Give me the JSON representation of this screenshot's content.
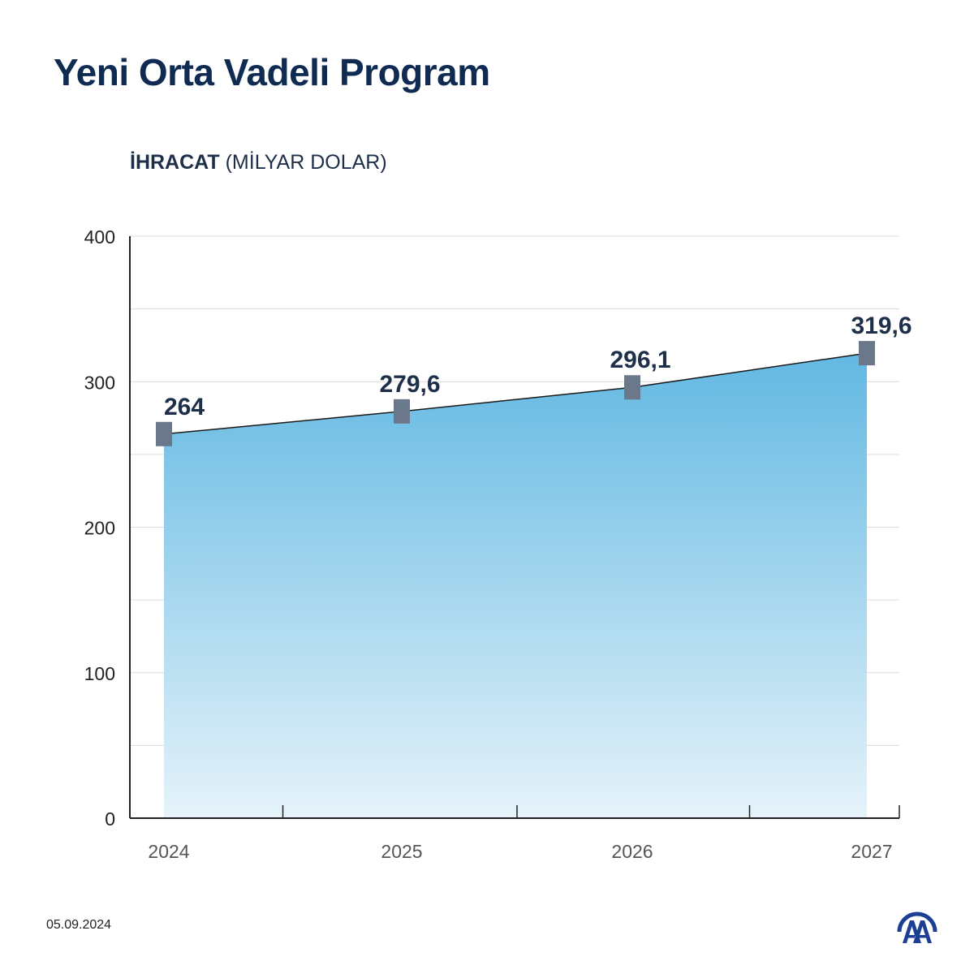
{
  "header": {
    "title": "Yeni Orta Vadeli Program"
  },
  "chart_data": {
    "type": "area",
    "title": "İHRACAT",
    "unit_label": "(MİLYAR DOLAR)",
    "categories": [
      "2024",
      "2025",
      "2026",
      "2027"
    ],
    "series": [
      {
        "name": "İhracat",
        "values": [
          264,
          279.6,
          296.1,
          319.6
        ]
      }
    ],
    "data_labels": [
      "264",
      "279,6",
      "296,1",
      "319,6"
    ],
    "ylim": [
      0,
      400
    ],
    "yticks": [
      0,
      100,
      200,
      300,
      400
    ],
    "ytick_labels": [
      "0",
      "100",
      "200",
      "300",
      "400"
    ],
    "grid": true,
    "colors": {
      "fill_top": "#62b8e2",
      "fill_bottom": "#e6f3fa",
      "line": "#1a1a1a",
      "marker": "#6b778a",
      "label": "#1e2f4a"
    }
  },
  "footer": {
    "date": "05.09.2024",
    "logo_text": "AA"
  }
}
